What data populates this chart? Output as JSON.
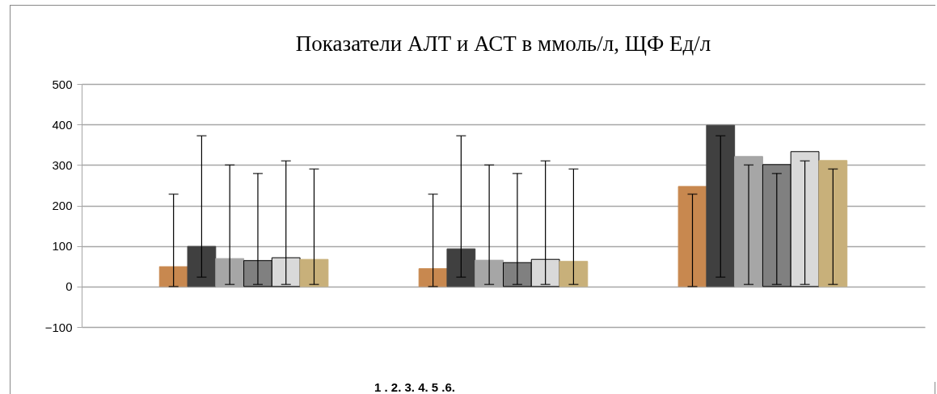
{
  "chart_data": {
    "type": "bar",
    "title": "Показатели  АЛТ и АСТ в ммоль/л, ЩФ Ед/л",
    "categories": [
      null,
      null,
      null
    ],
    "series": [
      {
        "color": "#c8884f",
        "values": [
          49,
          44,
          247
        ],
        "errors": [
          [
            0,
            228
          ],
          [
            0,
            228
          ],
          [
            0,
            228
          ]
        ]
      },
      {
        "color": "#404040",
        "values": [
          99,
          93,
          398
        ],
        "errors": [
          [
            23,
            372
          ],
          [
            23,
            372
          ],
          [
            23,
            372
          ]
        ]
      },
      {
        "color": "#a6a6a6",
        "values": [
          69,
          65,
          321
        ],
        "errors": [
          [
            5,
            300
          ],
          [
            5,
            300
          ],
          [
            5,
            300
          ]
        ]
      },
      {
        "color": "#808080",
        "values": [
          64,
          59,
          301
        ],
        "errors": [
          [
            5,
            279
          ],
          [
            5,
            279
          ],
          [
            5,
            279
          ]
        ]
      },
      {
        "color": "#d9d9d9",
        "values": [
          71,
          67,
          333
        ],
        "errors": [
          [
            5,
            310
          ],
          [
            5,
            310
          ],
          [
            5,
            310
          ]
        ]
      },
      {
        "color": "#c8b07a",
        "values": [
          67,
          62,
          311
        ],
        "errors": [
          [
            5,
            290
          ],
          [
            5,
            290
          ],
          [
            5,
            290
          ]
        ]
      }
    ],
    "ylim": [
      -100,
      500
    ],
    "yticks": [
      -100,
      0,
      100,
      200,
      300,
      400,
      500
    ],
    "grid": "y",
    "legend": false,
    "annotations": [
      "1 . 2. 3. 4. 5 .6."
    ]
  }
}
